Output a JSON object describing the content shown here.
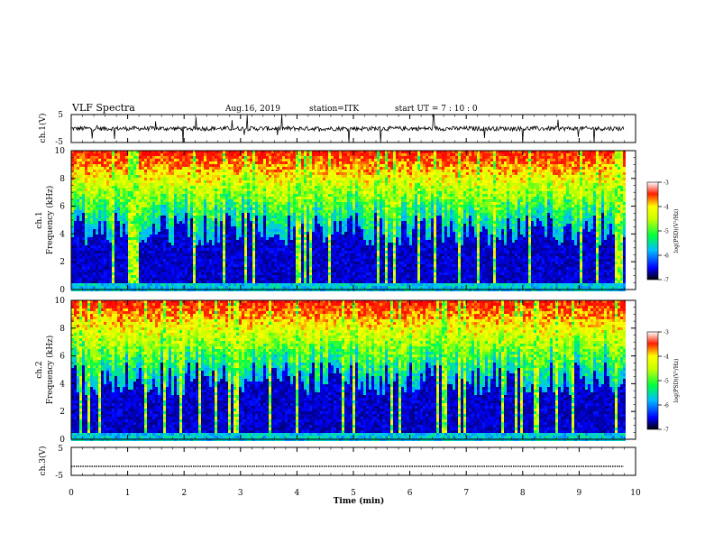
{
  "header": {
    "title": "VLF Spectra",
    "date": "Aug.16, 2019",
    "station": "station=ITK",
    "start": "start UT = 7 : 10 : 0"
  },
  "chart_data": [
    {
      "type": "line",
      "panel": "ch1-waveform",
      "ylabel": "ch.1(V)",
      "ylim": [
        -5,
        5
      ],
      "yticks": [
        "5",
        "-5"
      ],
      "xlim": [
        0,
        10
      ],
      "baseline": 0
    },
    {
      "type": "heatmap",
      "panel": "ch1-spectrogram",
      "ylabel": [
        "ch.1",
        "Frequency (kHz)"
      ],
      "ylim": [
        0,
        10
      ],
      "yticks": [
        "0",
        "2",
        "4",
        "6",
        "8",
        "10"
      ],
      "xlim": [
        0,
        10
      ],
      "colorbar": {
        "label": "log(PSD)(V²/Hz)",
        "range": [
          -7,
          -3
        ],
        "ticks": [
          "-3",
          "-4",
          "-5",
          "-6",
          "-7"
        ]
      }
    },
    {
      "type": "heatmap",
      "panel": "ch2-spectrogram",
      "ylabel": [
        "ch.2",
        "Frequency (kHz)"
      ],
      "ylim": [
        0,
        10
      ],
      "yticks": [
        "0",
        "2",
        "4",
        "6",
        "8",
        "10"
      ],
      "xlim": [
        0,
        10
      ],
      "colorbar": {
        "label": "log(PSD)(V²/Hz)",
        "range": [
          -7,
          -3
        ],
        "ticks": [
          "-3",
          "-4",
          "-5",
          "-6",
          "-7"
        ]
      }
    },
    {
      "type": "line",
      "panel": "ch3-waveform",
      "ylabel": "ch.3(V)",
      "ylim": [
        -5,
        5
      ],
      "yticks": [
        "5",
        "-5"
      ],
      "xlim": [
        0,
        10
      ],
      "baseline": -1.8
    }
  ],
  "xaxis": {
    "label": "Time (min)",
    "ticks": [
      "0",
      "1",
      "2",
      "3",
      "4",
      "5",
      "6",
      "7",
      "8",
      "9",
      "10"
    ]
  },
  "colors": {
    "spectrum_scale": [
      "#000000",
      "#00007f",
      "#0000ff",
      "#00bfff",
      "#00ff00",
      "#ffff00",
      "#ff0000",
      "#ffffff"
    ]
  }
}
